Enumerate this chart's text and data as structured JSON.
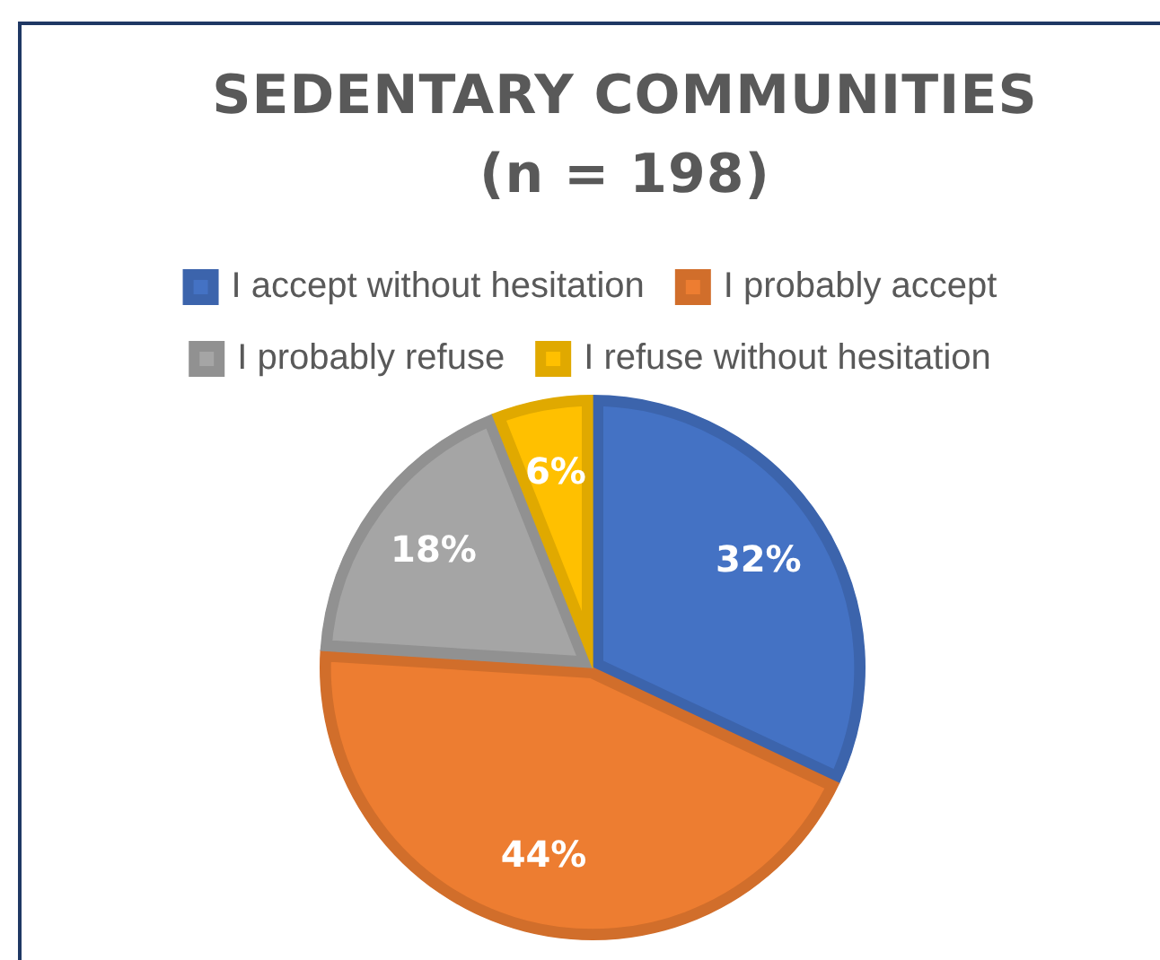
{
  "chart_data": {
    "type": "pie",
    "title": "SEDENTARY COMMUNITIES (n = 198)",
    "categories": [
      "I accept without hesitation",
      "I probably accept",
      "I probably refuse",
      "I refuse without hesitation"
    ],
    "values": [
      32,
      44,
      18,
      6
    ],
    "colors": [
      "#4472c4",
      "#ed7d31",
      "#a5a5a5",
      "#ffc000"
    ],
    "value_labels": [
      "32%",
      "44%",
      "18%",
      "6%"
    ],
    "legend": "top"
  }
}
